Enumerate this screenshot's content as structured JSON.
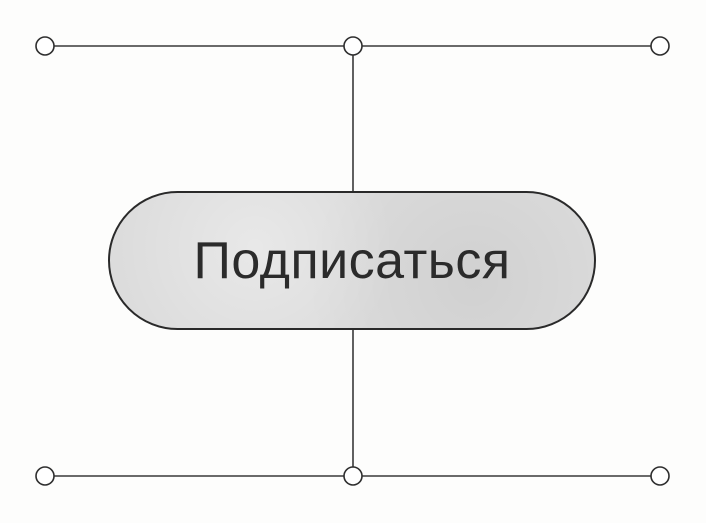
{
  "button": {
    "label": "Подписаться"
  },
  "colors": {
    "button_fill": "#dcdcdc",
    "stroke": "#2a2a2a",
    "background": "#fdfdfc"
  }
}
